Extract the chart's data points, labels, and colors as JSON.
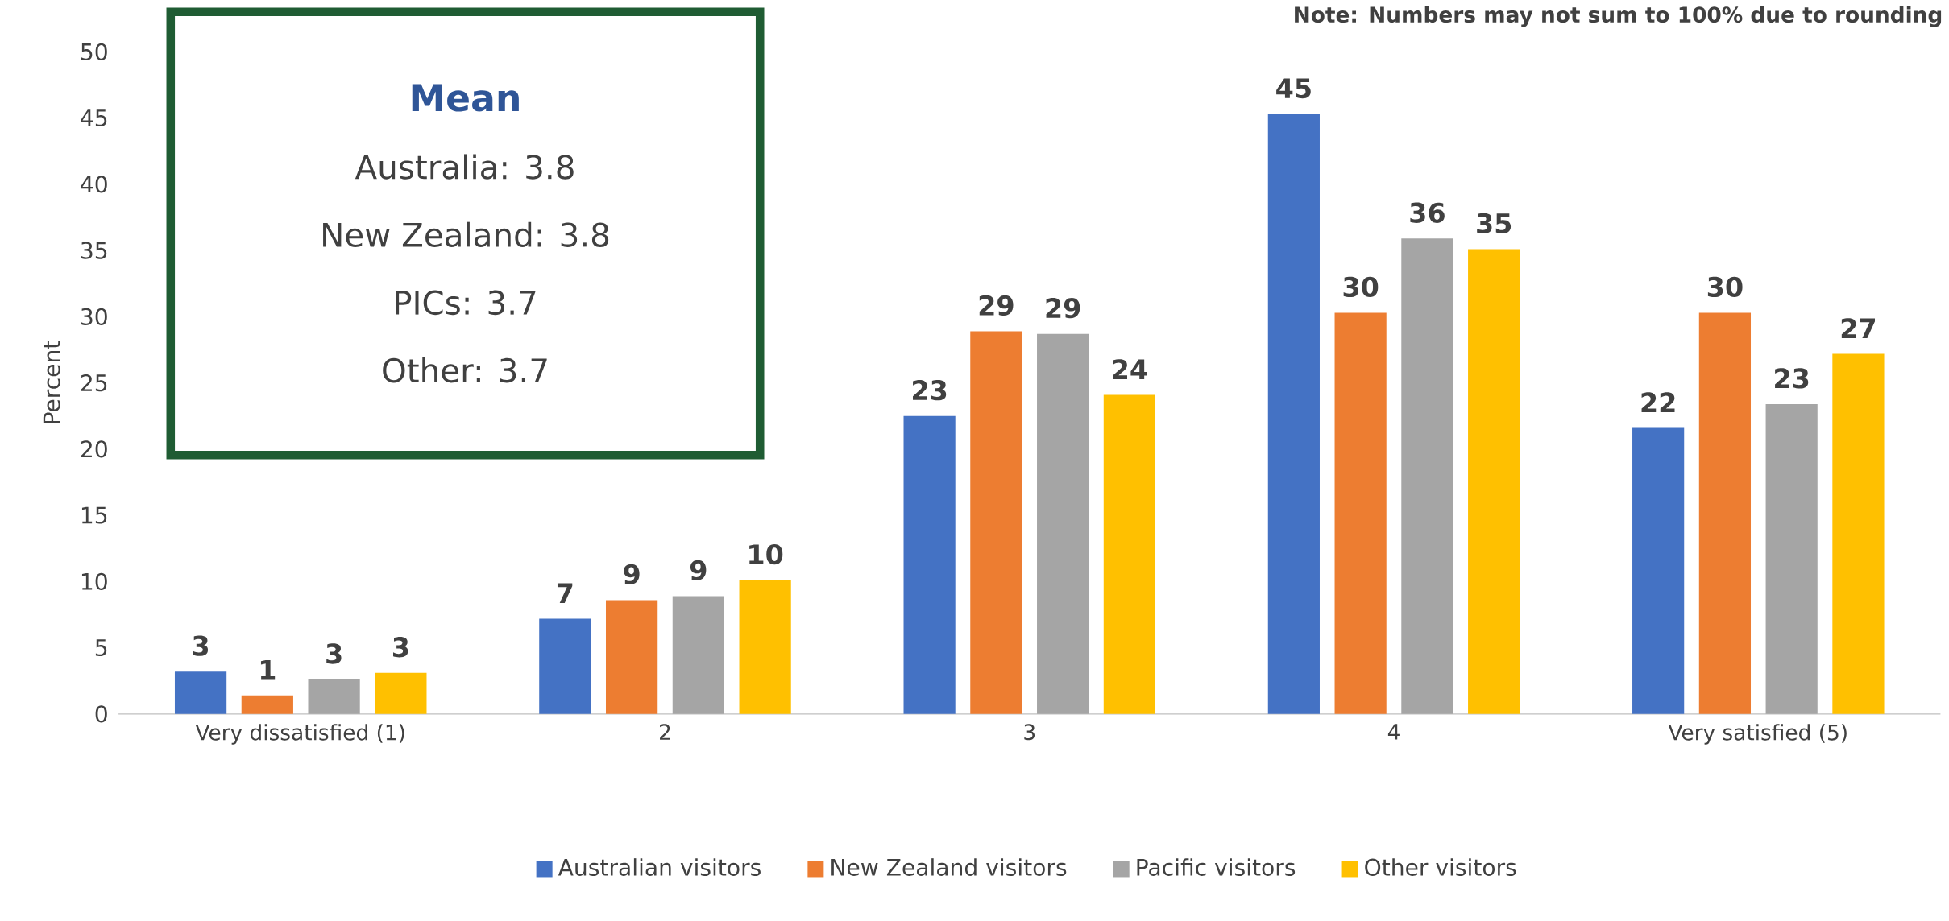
{
  "chart_data": {
    "type": "bar",
    "categories": [
      "Very dissatisfied (1)",
      "2",
      "3",
      "4",
      "Very satisfied (5)"
    ],
    "series": [
      {
        "name": "Australian visitors",
        "color": "#4472c4",
        "values": [
          3.2,
          7.2,
          22.5,
          45.3,
          21.6
        ],
        "value_labels": [
          "3",
          "7",
          "23",
          "45",
          "22"
        ]
      },
      {
        "name": "New Zealand visitors",
        "color": "#ed7d31",
        "values": [
          1.4,
          8.6,
          28.9,
          30.3,
          30.3
        ],
        "value_labels": [
          "1",
          "9",
          "29",
          "30",
          "30"
        ]
      },
      {
        "name": "Pacific visitors",
        "color": "#a5a5a5",
        "values": [
          2.6,
          8.9,
          28.7,
          35.9,
          23.4
        ],
        "value_labels": [
          "3",
          "9",
          "29",
          "36",
          "23"
        ]
      },
      {
        "name": "Other visitors",
        "color": "#ffc000",
        "values": [
          3.1,
          10.1,
          24.1,
          35.1,
          27.2
        ],
        "value_labels": [
          "3",
          "10",
          "24",
          "35",
          "27"
        ]
      }
    ],
    "ylabel": "Percent",
    "ylim": [
      0,
      50
    ],
    "yticks": [
      0,
      5,
      10,
      15,
      20,
      25,
      30,
      35,
      40,
      45,
      50
    ],
    "legend": "bottom",
    "annotations": [
      "Note: Numbers may not sum to 100% due to rounding",
      "Mean",
      "Australia: 3.8",
      "New Zealand: 3.8",
      "PICs: 3.7",
      "Other: 3.7"
    ]
  }
}
